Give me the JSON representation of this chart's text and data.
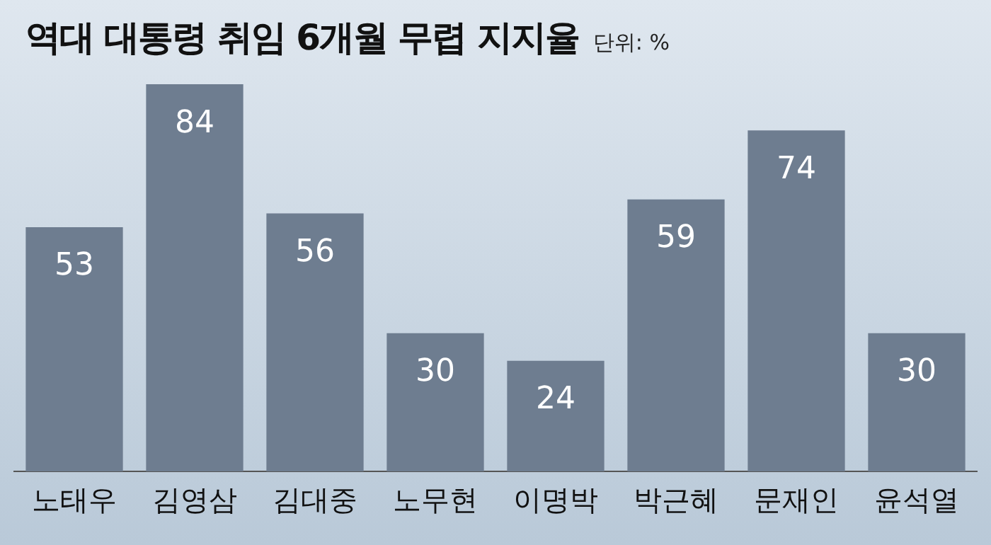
{
  "chart_data": {
    "type": "bar",
    "title": "역대 대통령 취임 6개월 무렵 지지율",
    "subtitle": "단위: %",
    "categories": [
      "노태우",
      "김영삼",
      "김대중",
      "노무현",
      "이명박",
      "박근혜",
      "문재인",
      "윤석열"
    ],
    "values": [
      53,
      84,
      56,
      30,
      24,
      59,
      74,
      30
    ],
    "color": "#6e7d90",
    "data_labels": true,
    "grid": false,
    "legend": false
  }
}
